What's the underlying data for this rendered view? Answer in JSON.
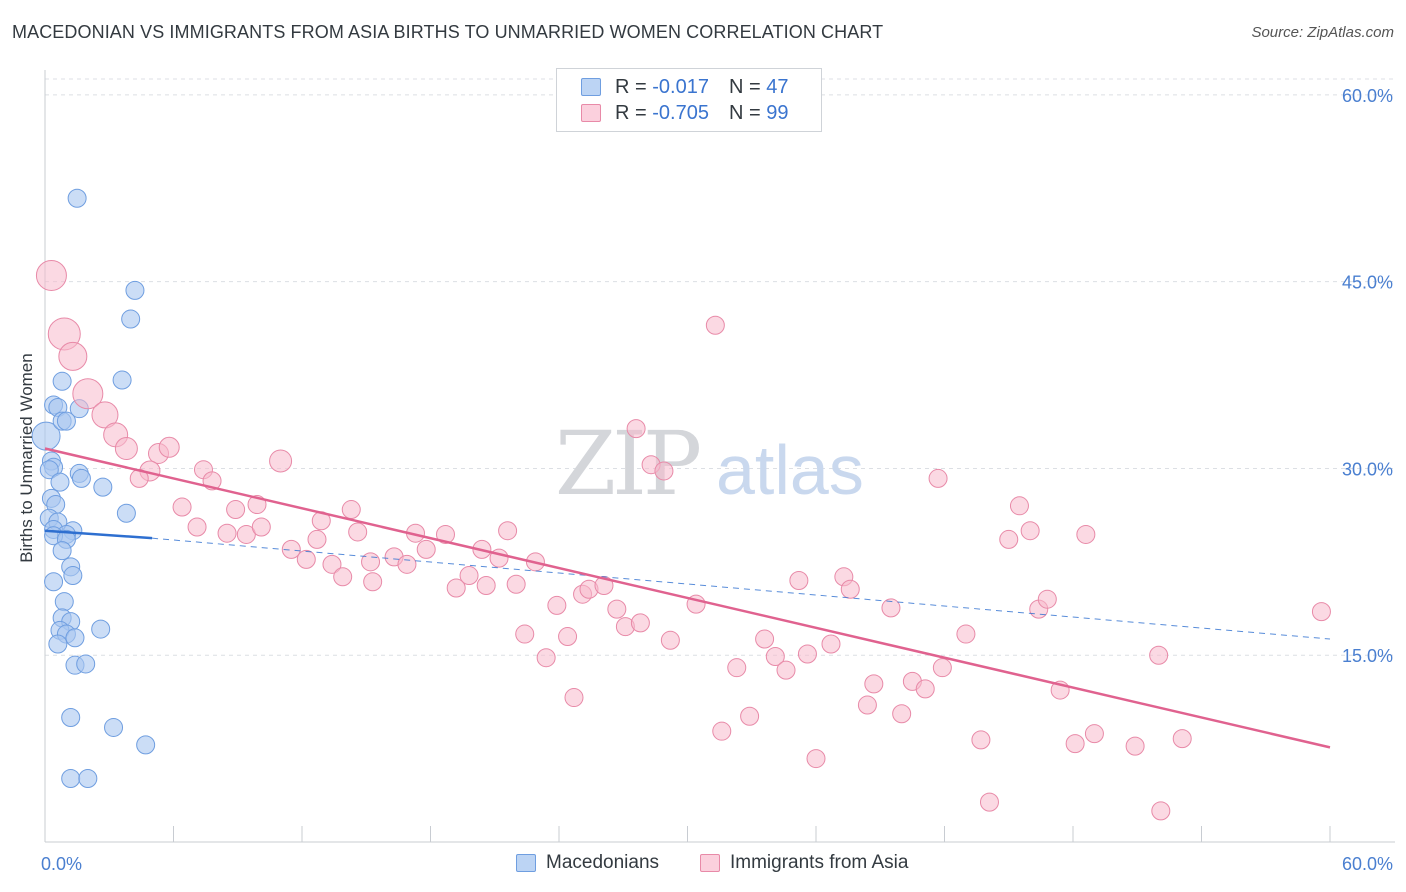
{
  "title": "MACEDONIAN VS IMMIGRANTS FROM ASIA BIRTHS TO UNMARRIED WOMEN CORRELATION CHART",
  "source": "Source: ZipAtlas.com",
  "watermark": {
    "zip": "ZIP",
    "atlas": "atlas"
  },
  "colors": {
    "blue_fill": "#a9c7f0",
    "blue_stroke": "#6f9ee0",
    "blue_line": "#2e6fd0",
    "pink_fill": "#f7b9cc",
    "pink_stroke": "#e88aa8",
    "pink_line": "#e0628f",
    "tick_text": "#4a7fd0",
    "grid": "#dcdfe4"
  },
  "legend": {
    "rows": [
      {
        "r_label": "R = ",
        "r_value": "-0.017",
        "n_label": "N = ",
        "n_value": "47"
      },
      {
        "r_label": "R = ",
        "r_value": "-0.705",
        "n_label": "N = ",
        "n_value": "99"
      }
    ]
  },
  "chart_data": {
    "type": "scatter",
    "title": "MACEDONIAN VS IMMIGRANTS FROM ASIA BIRTHS TO UNMARRIED WOMEN CORRELATION CHART",
    "xlabel": "",
    "ylabel": "Births to Unmarried Women",
    "xlim": [
      0,
      60
    ],
    "ylim": [
      0,
      62
    ],
    "x_tick_labels": [
      "0.0%",
      "60.0%"
    ],
    "y_ticks": [
      15,
      30,
      45,
      60
    ],
    "y_tick_labels": [
      "15.0%",
      "30.0%",
      "45.0%",
      "60.0%"
    ],
    "grid": true,
    "legend_position": "bottom-center",
    "series": [
      {
        "name": "Macedonians",
        "r": -0.017,
        "n": 47,
        "trend_solid": {
          "x": [
            0,
            5
          ],
          "y": [
            25.0,
            24.4
          ]
        },
        "trend_dashed": {
          "x": [
            5,
            60
          ],
          "y": [
            24.4,
            16.3
          ]
        },
        "points": [
          {
            "x": 0.05,
            "y": 32.6,
            "s": 14
          },
          {
            "x": 1.5,
            "y": 51.7,
            "s": 9
          },
          {
            "x": 4.2,
            "y": 44.3,
            "s": 9
          },
          {
            "x": 4.0,
            "y": 42.0,
            "s": 9
          },
          {
            "x": 3.6,
            "y": 37.1,
            "s": 9
          },
          {
            "x": 0.8,
            "y": 37.0,
            "s": 9
          },
          {
            "x": 0.4,
            "y": 35.1,
            "s": 9
          },
          {
            "x": 0.6,
            "y": 34.9,
            "s": 9
          },
          {
            "x": 1.6,
            "y": 34.8,
            "s": 9
          },
          {
            "x": 0.8,
            "y": 33.8,
            "s": 9
          },
          {
            "x": 1.0,
            "y": 33.8,
            "s": 9
          },
          {
            "x": 0.3,
            "y": 30.6,
            "s": 9
          },
          {
            "x": 0.4,
            "y": 30.1,
            "s": 9
          },
          {
            "x": 0.2,
            "y": 29.9,
            "s": 9
          },
          {
            "x": 1.6,
            "y": 29.6,
            "s": 9
          },
          {
            "x": 1.7,
            "y": 29.2,
            "s": 9
          },
          {
            "x": 0.7,
            "y": 28.9,
            "s": 9
          },
          {
            "x": 2.7,
            "y": 28.5,
            "s": 9
          },
          {
            "x": 0.3,
            "y": 27.6,
            "s": 9
          },
          {
            "x": 0.5,
            "y": 27.1,
            "s": 9
          },
          {
            "x": 3.8,
            "y": 26.4,
            "s": 9
          },
          {
            "x": 0.2,
            "y": 26.0,
            "s": 9
          },
          {
            "x": 0.6,
            "y": 25.7,
            "s": 9
          },
          {
            "x": 0.4,
            "y": 25.1,
            "s": 9
          },
          {
            "x": 1.3,
            "y": 25.0,
            "s": 9
          },
          {
            "x": 1.0,
            "y": 24.7,
            "s": 9
          },
          {
            "x": 0.4,
            "y": 24.6,
            "s": 9
          },
          {
            "x": 1.0,
            "y": 24.3,
            "s": 9
          },
          {
            "x": 0.8,
            "y": 23.4,
            "s": 9
          },
          {
            "x": 1.2,
            "y": 22.1,
            "s": 9
          },
          {
            "x": 1.3,
            "y": 21.4,
            "s": 9
          },
          {
            "x": 0.4,
            "y": 20.9,
            "s": 9
          },
          {
            "x": 0.9,
            "y": 19.3,
            "s": 9
          },
          {
            "x": 0.8,
            "y": 18.0,
            "s": 9
          },
          {
            "x": 1.2,
            "y": 17.7,
            "s": 9
          },
          {
            "x": 2.6,
            "y": 17.1,
            "s": 9
          },
          {
            "x": 0.7,
            "y": 17.0,
            "s": 9
          },
          {
            "x": 1.0,
            "y": 16.7,
            "s": 9
          },
          {
            "x": 1.4,
            "y": 16.4,
            "s": 9
          },
          {
            "x": 0.6,
            "y": 15.9,
            "s": 9
          },
          {
            "x": 1.4,
            "y": 14.2,
            "s": 9
          },
          {
            "x": 1.9,
            "y": 14.3,
            "s": 9
          },
          {
            "x": 1.2,
            "y": 10.0,
            "s": 9
          },
          {
            "x": 3.2,
            "y": 9.2,
            "s": 9
          },
          {
            "x": 4.7,
            "y": 7.8,
            "s": 9
          },
          {
            "x": 1.2,
            "y": 5.1,
            "s": 9
          },
          {
            "x": 2.0,
            "y": 5.1,
            "s": 9
          }
        ]
      },
      {
        "name": "Immigrants from Asia",
        "r": -0.705,
        "n": 99,
        "trend": {
          "x": [
            0,
            60
          ],
          "y": [
            31.6,
            7.6
          ]
        },
        "points": [
          {
            "x": 0.3,
            "y": 45.5,
            "s": 15
          },
          {
            "x": 0.9,
            "y": 40.8,
            "s": 16
          },
          {
            "x": 1.3,
            "y": 39.0,
            "s": 14
          },
          {
            "x": 2.0,
            "y": 36.0,
            "s": 15
          },
          {
            "x": 2.8,
            "y": 34.3,
            "s": 13
          },
          {
            "x": 3.3,
            "y": 32.7,
            "s": 12
          },
          {
            "x": 3.8,
            "y": 31.6,
            "s": 11
          },
          {
            "x": 5.3,
            "y": 31.2,
            "s": 10
          },
          {
            "x": 5.8,
            "y": 31.7,
            "s": 10
          },
          {
            "x": 4.9,
            "y": 29.8,
            "s": 10
          },
          {
            "x": 4.4,
            "y": 29.2,
            "s": 9
          },
          {
            "x": 7.4,
            "y": 29.9,
            "s": 9
          },
          {
            "x": 7.8,
            "y": 29.0,
            "s": 9
          },
          {
            "x": 11.0,
            "y": 30.6,
            "s": 11
          },
          {
            "x": 6.4,
            "y": 26.9,
            "s": 9
          },
          {
            "x": 8.9,
            "y": 26.7,
            "s": 9
          },
          {
            "x": 9.9,
            "y": 27.1,
            "s": 9
          },
          {
            "x": 7.1,
            "y": 25.3,
            "s": 9
          },
          {
            "x": 8.5,
            "y": 24.8,
            "s": 9
          },
          {
            "x": 9.4,
            "y": 24.7,
            "s": 9
          },
          {
            "x": 10.1,
            "y": 25.3,
            "s": 9
          },
          {
            "x": 12.9,
            "y": 25.8,
            "s": 9
          },
          {
            "x": 14.3,
            "y": 26.7,
            "s": 9
          },
          {
            "x": 11.5,
            "y": 23.5,
            "s": 9
          },
          {
            "x": 12.2,
            "y": 22.7,
            "s": 9
          },
          {
            "x": 13.4,
            "y": 22.3,
            "s": 9
          },
          {
            "x": 14.6,
            "y": 24.9,
            "s": 9
          },
          {
            "x": 15.2,
            "y": 22.5,
            "s": 9
          },
          {
            "x": 16.3,
            "y": 22.9,
            "s": 9
          },
          {
            "x": 16.9,
            "y": 22.3,
            "s": 9
          },
          {
            "x": 17.3,
            "y": 24.8,
            "s": 9
          },
          {
            "x": 17.8,
            "y": 23.5,
            "s": 9
          },
          {
            "x": 18.7,
            "y": 24.7,
            "s": 9
          },
          {
            "x": 12.7,
            "y": 24.3,
            "s": 9
          },
          {
            "x": 13.9,
            "y": 21.3,
            "s": 9
          },
          {
            "x": 15.3,
            "y": 20.9,
            "s": 9
          },
          {
            "x": 19.2,
            "y": 20.4,
            "s": 9
          },
          {
            "x": 19.8,
            "y": 21.4,
            "s": 9
          },
          {
            "x": 20.4,
            "y": 23.5,
            "s": 9
          },
          {
            "x": 20.6,
            "y": 20.6,
            "s": 9
          },
          {
            "x": 21.2,
            "y": 22.8,
            "s": 9
          },
          {
            "x": 21.6,
            "y": 25.0,
            "s": 9
          },
          {
            "x": 22.0,
            "y": 20.7,
            "s": 9
          },
          {
            "x": 22.9,
            "y": 22.5,
            "s": 9
          },
          {
            "x": 22.4,
            "y": 16.7,
            "s": 9
          },
          {
            "x": 23.4,
            "y": 14.8,
            "s": 9
          },
          {
            "x": 23.9,
            "y": 19.0,
            "s": 9
          },
          {
            "x": 24.4,
            "y": 16.5,
            "s": 9
          },
          {
            "x": 25.1,
            "y": 19.9,
            "s": 9
          },
          {
            "x": 25.4,
            "y": 20.3,
            "s": 9
          },
          {
            "x": 24.7,
            "y": 11.6,
            "s": 9
          },
          {
            "x": 26.1,
            "y": 20.6,
            "s": 9
          },
          {
            "x": 26.7,
            "y": 18.7,
            "s": 9
          },
          {
            "x": 27.1,
            "y": 17.3,
            "s": 9
          },
          {
            "x": 27.6,
            "y": 33.2,
            "s": 9
          },
          {
            "x": 27.8,
            "y": 17.6,
            "s": 9
          },
          {
            "x": 28.3,
            "y": 30.3,
            "s": 9
          },
          {
            "x": 28.9,
            "y": 29.8,
            "s": 9
          },
          {
            "x": 29.2,
            "y": 16.2,
            "s": 9
          },
          {
            "x": 30.4,
            "y": 19.1,
            "s": 9
          },
          {
            "x": 31.6,
            "y": 8.9,
            "s": 9
          },
          {
            "x": 31.3,
            "y": 41.5,
            "s": 9
          },
          {
            "x": 32.3,
            "y": 14.0,
            "s": 9
          },
          {
            "x": 32.9,
            "y": 10.1,
            "s": 9
          },
          {
            "x": 33.6,
            "y": 16.3,
            "s": 9
          },
          {
            "x": 34.1,
            "y": 14.9,
            "s": 9
          },
          {
            "x": 34.6,
            "y": 13.8,
            "s": 9
          },
          {
            "x": 35.2,
            "y": 21.0,
            "s": 9
          },
          {
            "x": 35.6,
            "y": 15.1,
            "s": 9
          },
          {
            "x": 36.0,
            "y": 6.7,
            "s": 9
          },
          {
            "x": 36.7,
            "y": 15.9,
            "s": 9
          },
          {
            "x": 37.3,
            "y": 21.3,
            "s": 9
          },
          {
            "x": 37.6,
            "y": 20.3,
            "s": 9
          },
          {
            "x": 38.4,
            "y": 11.0,
            "s": 9
          },
          {
            "x": 38.7,
            "y": 12.7,
            "s": 9
          },
          {
            "x": 39.5,
            "y": 18.8,
            "s": 9
          },
          {
            "x": 40.0,
            "y": 10.3,
            "s": 9
          },
          {
            "x": 40.5,
            "y": 12.9,
            "s": 9
          },
          {
            "x": 41.1,
            "y": 12.3,
            "s": 9
          },
          {
            "x": 41.7,
            "y": 29.2,
            "s": 9
          },
          {
            "x": 41.9,
            "y": 14.0,
            "s": 9
          },
          {
            "x": 43.0,
            "y": 16.7,
            "s": 9
          },
          {
            "x": 43.7,
            "y": 8.2,
            "s": 9
          },
          {
            "x": 44.1,
            "y": 3.2,
            "s": 9
          },
          {
            "x": 45.0,
            "y": 24.3,
            "s": 9
          },
          {
            "x": 45.5,
            "y": 27.0,
            "s": 9
          },
          {
            "x": 46.0,
            "y": 25.0,
            "s": 9
          },
          {
            "x": 46.4,
            "y": 18.7,
            "s": 9
          },
          {
            "x": 46.8,
            "y": 19.5,
            "s": 9
          },
          {
            "x": 47.4,
            "y": 12.2,
            "s": 9
          },
          {
            "x": 48.1,
            "y": 7.9,
            "s": 9
          },
          {
            "x": 48.6,
            "y": 24.7,
            "s": 9
          },
          {
            "x": 49.0,
            "y": 8.7,
            "s": 9
          },
          {
            "x": 50.9,
            "y": 7.7,
            "s": 9
          },
          {
            "x": 52.0,
            "y": 15.0,
            "s": 9
          },
          {
            "x": 52.1,
            "y": 2.5,
            "s": 9
          },
          {
            "x": 53.1,
            "y": 8.3,
            "s": 9
          },
          {
            "x": 59.6,
            "y": 18.5,
            "s": 9
          }
        ]
      }
    ]
  }
}
